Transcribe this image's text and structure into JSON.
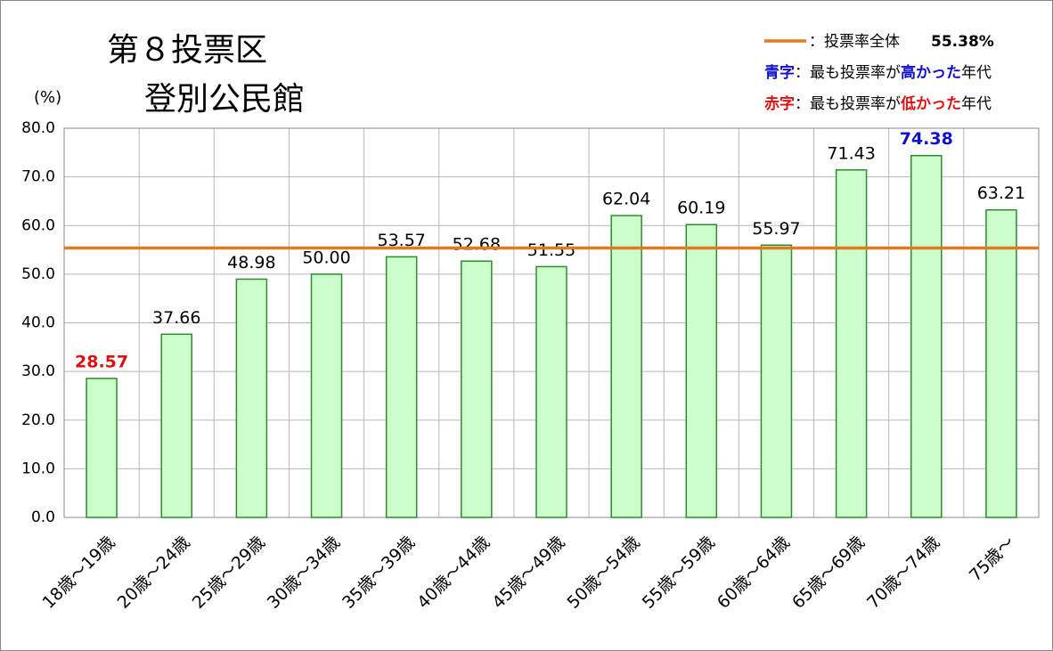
{
  "chart_data": {
    "type": "bar",
    "title": [
      "第８投票区",
      "登別公民館"
    ],
    "y_unit": "(%)",
    "categories": [
      "18歳～19歳",
      "20歳～24歳",
      "25歳～29歳",
      "30歳～34歳",
      "35歳～39歳",
      "40歳～44歳",
      "45歳～49歳",
      "50歳～54歳",
      "55歳～59歳",
      "60歳～64歳",
      "65歳～69歳",
      "70歳～74歳",
      "75歳～"
    ],
    "values": [
      28.57,
      37.66,
      48.98,
      50.0,
      53.57,
      52.68,
      51.55,
      62.04,
      60.19,
      55.97,
      71.43,
      74.38,
      63.21
    ],
    "value_labels": [
      "28.57",
      "37.66",
      "48.98",
      "50.00",
      "53.57",
      "52.68",
      "51.55",
      "62.04",
      "60.19",
      "55.97",
      "71.43",
      "74.38",
      "63.21"
    ],
    "color": "#ccffcc",
    "edge_color": "#2e8b2e",
    "ylim": [
      0,
      80
    ],
    "yticks": [
      {
        "value": 0,
        "label": "0.0"
      },
      {
        "value": 10,
        "label": "10.0"
      },
      {
        "value": 20,
        "label": "20.0"
      },
      {
        "value": 30,
        "label": "30.0"
      },
      {
        "value": 40,
        "label": "40.0"
      },
      {
        "value": 50,
        "label": "50.0"
      },
      {
        "value": 60,
        "label": "60.0"
      },
      {
        "value": 70,
        "label": "70.0"
      },
      {
        "value": 80,
        "label": "80.0"
      }
    ],
    "grid": true,
    "reference": {
      "name": "：投票率全体",
      "value": 55.38,
      "value_label": "55.38%",
      "color": "#e07a1f"
    },
    "legend_notes": [
      {
        "key": "青字",
        "text": "：最も投票率が",
        "emph": "高かった",
        "tail": "年代",
        "color": "#1010cc"
      },
      {
        "key": "赤字",
        "text": "：最も投票率が",
        "emph": "低かった",
        "tail": "年代",
        "color": "#e01010"
      }
    ]
  }
}
